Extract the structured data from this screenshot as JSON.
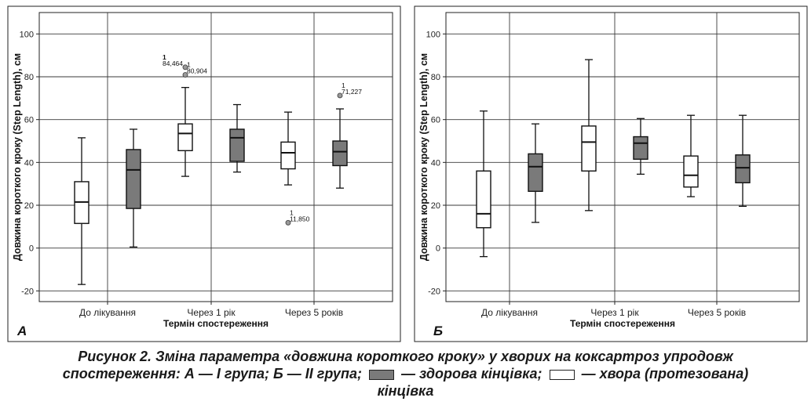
{
  "chart_data": [
    {
      "type": "boxplot",
      "panel_label": "А",
      "ylabel": "Довжина короткого кроку (Step Length), см",
      "xlabel": "Термін спостереження",
      "ylim": [
        -25,
        110
      ],
      "yticks": [
        -20,
        0,
        20,
        40,
        60,
        80,
        100
      ],
      "categories": [
        "До лікування",
        "Через 1 рік",
        "Через 5 років"
      ],
      "grid": true,
      "boxes": [
        {
          "category": "До лікування",
          "series": "хвора (протезована) кінцівка",
          "min": -17,
          "q1": 11.5,
          "median": 21.5,
          "q3": 31,
          "max": 51.5
        },
        {
          "category": "До лікування",
          "series": "здорова кінцівка",
          "min": 0.5,
          "q1": 18.5,
          "median": 36.5,
          "q3": 46,
          "max": 55.5
        },
        {
          "category": "Через 1 рік",
          "series": "хвора (протезована) кінцівка",
          "min": 33.5,
          "q1": 45.5,
          "median": 53.5,
          "q3": 58,
          "max": 75
        },
        {
          "category": "Через 1 рік",
          "series": "здорова кінцівка",
          "min": 35.5,
          "q1": 40.5,
          "median": 51.5,
          "q3": 55.5,
          "max": 67
        },
        {
          "category": "Через 5 років",
          "series": "хвора (протезована) кінцівка",
          "min": 29.5,
          "q1": 37,
          "median": 44.5,
          "q3": 49.5,
          "max": 63.5
        },
        {
          "category": "Через 5 років",
          "series": "здорова кінцівка",
          "min": 28,
          "q1": 38.5,
          "median": 45,
          "q3": 50,
          "max": 65
        }
      ],
      "outliers": [
        {
          "box": 2,
          "value": 84.464,
          "id": "1",
          "label": "84,464"
        },
        {
          "box": 2,
          "value": 80.904,
          "id": "1",
          "label": "80,904"
        },
        {
          "box": 4,
          "value": 11.85,
          "id": "1",
          "label": "11,850"
        },
        {
          "box": 5,
          "value": 71.227,
          "id": "1",
          "label": "71,227"
        }
      ]
    },
    {
      "type": "boxplot",
      "panel_label": "Б",
      "ylabel": "Довжина короткого кроку (Step Length), см",
      "xlabel": "Термін спостереження",
      "ylim": [
        -25,
        110
      ],
      "yticks": [
        -20,
        0,
        20,
        40,
        60,
        80,
        100
      ],
      "categories": [
        "До лікування",
        "Через 1 рік",
        "Через 5 років"
      ],
      "grid": true,
      "boxes": [
        {
          "category": "До лікування",
          "series": "хвора (протезована) кінцівка",
          "min": -4,
          "q1": 9.5,
          "median": 16,
          "q3": 36,
          "max": 64
        },
        {
          "category": "До лікування",
          "series": "здорова кінцівка",
          "min": 12,
          "q1": 26.5,
          "median": 38,
          "q3": 44,
          "max": 58
        },
        {
          "category": "Через 1 рік",
          "series": "хвора (протезована) кінцівка",
          "min": 17.5,
          "q1": 36,
          "median": 49.5,
          "q3": 57,
          "max": 88
        },
        {
          "category": "Через 1 рік",
          "series": "здорова кінцівка",
          "min": 34.5,
          "q1": 41.5,
          "median": 49,
          "q3": 52,
          "max": 60.5
        },
        {
          "category": "Через 5 років",
          "series": "хвора (протезована) кінцівка",
          "min": 24,
          "q1": 28.5,
          "median": 34,
          "q3": 43,
          "max": 62
        },
        {
          "category": "Через 5 років",
          "series": "здорова кінцівка",
          "min": 19.5,
          "q1": 30.5,
          "median": 37.5,
          "q3": 43.5,
          "max": 62
        }
      ],
      "outliers": []
    }
  ],
  "colors": {
    "frame": "#222222",
    "plot_bg": "#ffffff",
    "grid": "#3a3a3a",
    "grey_box": "#7a7a7a",
    "white_box": "#ffffff",
    "outlier": "#9a9a9a"
  },
  "caption": {
    "line1": "Рисунок 2. Зміна параметра «довжина короткого кроку» у хворих на коксартроз упродовж",
    "line2_a": "спостереження: А — І група; Б — ІІ група;",
    "line2_b": "— здорова кінцівка;",
    "line2_c": "— хвора (протезована)",
    "line3": "кінцівка"
  }
}
